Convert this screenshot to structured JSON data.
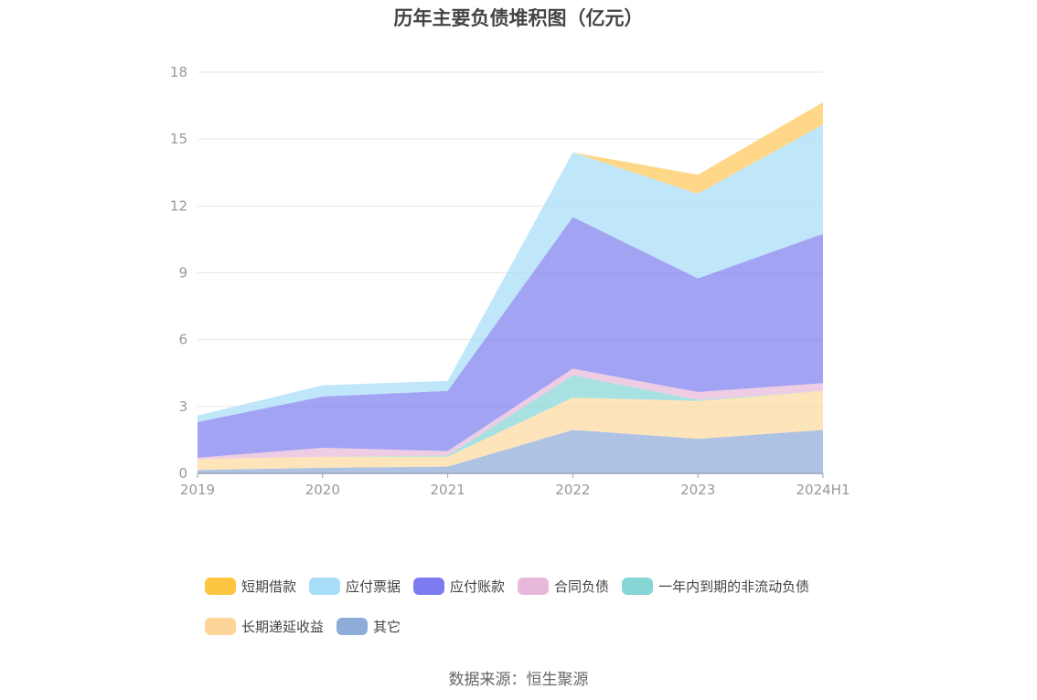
{
  "chart_data": {
    "type": "area",
    "title": "历年主要负债堆积图（亿元）",
    "categories": [
      "2019",
      "2020",
      "2021",
      "2022",
      "2023",
      "2024H1"
    ],
    "ylim": [
      0,
      18
    ],
    "yticks": [
      "0",
      "3",
      "6",
      "9",
      "12",
      "15",
      "18"
    ],
    "grid": true,
    "stacked": true,
    "legend_position": "bottom",
    "series": [
      {
        "name": "其它",
        "color": "#8facd8",
        "values": [
          0.15,
          0.25,
          0.3,
          1.95,
          1.55,
          1.95
        ]
      },
      {
        "name": "长期递延收益",
        "color": "#fcd9a0",
        "values": [
          0.5,
          0.5,
          0.45,
          1.45,
          1.7,
          1.75
        ]
      },
      {
        "name": "一年内到期的非流动负债",
        "color": "#86d6d6",
        "values": [
          0,
          0,
          0.05,
          1.0,
          0.05,
          0
        ]
      },
      {
        "name": "合同负债",
        "color": "#e8b8da",
        "values": [
          0.05,
          0.4,
          0.2,
          0.3,
          0.35,
          0.35
        ]
      },
      {
        "name": "应付账款",
        "color": "#7f7ff0",
        "values": [
          1.6,
          2.3,
          2.7,
          6.8,
          5.1,
          6.7
        ]
      },
      {
        "name": "应付票据",
        "color": "#a8ddf8",
        "values": [
          0.3,
          0.5,
          0.45,
          2.9,
          3.8,
          4.9
        ]
      },
      {
        "name": "短期借款",
        "color": "#fdc95a",
        "values": [
          0,
          0,
          0,
          0,
          0.85,
          1.0
        ]
      }
    ]
  },
  "legend": [
    {
      "label": "短期借款",
      "color": "#fdc540"
    },
    {
      "label": "应付票据",
      "color": "#a8ddf8"
    },
    {
      "label": "应付账款",
      "color": "#7c7cf0"
    },
    {
      "label": "合同负债",
      "color": "#e8b8da"
    },
    {
      "label": "一年内到期的非流动负债",
      "color": "#86d6d6"
    },
    {
      "label": "长期递延收益",
      "color": "#fdd598"
    },
    {
      "label": "其它",
      "color": "#8facd8"
    }
  ],
  "source": "数据来源：恒生聚源"
}
